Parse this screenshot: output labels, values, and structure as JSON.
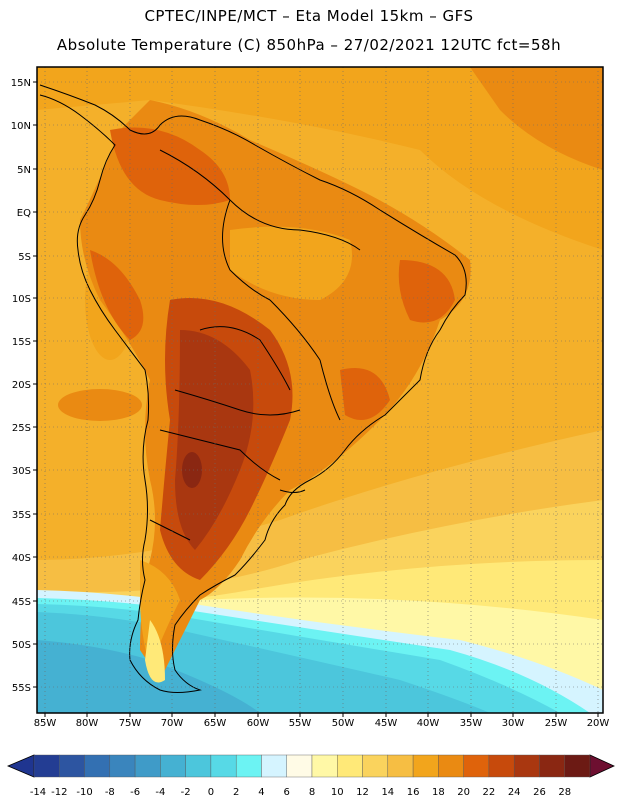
{
  "header": {
    "title_line1": "CPTEC/INPE/MCT –  Eta Model 15km – GFS",
    "title_line2": "Absolute Temperature (C) 850hPa – 27/02/2021 12UTC fct=58h"
  },
  "lat_labels": [
    "15N",
    "10N",
    "5N",
    "EQ",
    "5S",
    "10S",
    "15S",
    "20S",
    "25S",
    "30S",
    "35S",
    "40S",
    "45S",
    "50S",
    "55S"
  ],
  "lon_labels": [
    "85W",
    "80W",
    "75W",
    "70W",
    "65W",
    "60W",
    "55W",
    "50W",
    "45W",
    "40W",
    "35W",
    "30W",
    "25W",
    "20W"
  ],
  "colorbar": {
    "labels": [
      "-14",
      "-12",
      "-10",
      "-8",
      "-6",
      "-4",
      "-2",
      "0",
      "2",
      "4",
      "6",
      "8",
      "10",
      "12",
      "14",
      "16",
      "18",
      "20",
      "22",
      "24",
      "26",
      "28"
    ],
    "colors": [
      "#233d93",
      "#2d55a1",
      "#3370b2",
      "#3a85bd",
      "#3f9bc8",
      "#45b1d2",
      "#4cc6dc",
      "#57d9e6",
      "#6cf3f3",
      "#d5f4ff",
      "#fffbe6",
      "#fff8a6",
      "#ffe978",
      "#fad35d",
      "#f6be43",
      "#f2a51c",
      "#ea8a12",
      "#df630b",
      "#c74a0c",
      "#a93710",
      "#8a2712",
      "#6c1a14"
    ],
    "under_color": "#1f3590",
    "over_color": "#6d0f30"
  }
}
